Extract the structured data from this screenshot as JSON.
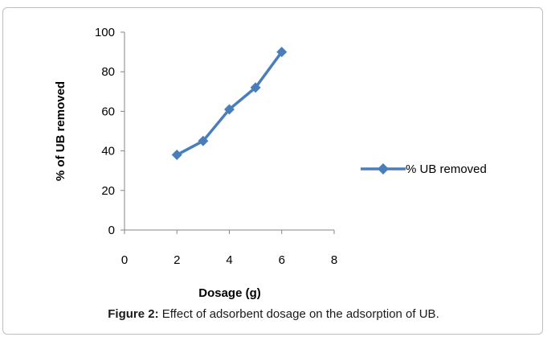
{
  "chart_data": {
    "type": "line",
    "x": [
      2,
      3,
      4,
      5,
      6
    ],
    "series": [
      {
        "name": "% UB removed",
        "values": [
          38,
          45,
          61,
          72,
          90
        ]
      }
    ],
    "xlabel": "Dosage (g)",
    "ylabel": "% of UB removed",
    "xlim": [
      0,
      8
    ],
    "ylim": [
      0,
      100
    ],
    "xticks": [
      0,
      2,
      4,
      6,
      8
    ],
    "yticks": [
      0,
      20,
      40,
      60,
      80,
      100
    ],
    "grid": false,
    "legend_position": "right",
    "marker": "diamond",
    "series_color": "#4a7ebb"
  },
  "caption": {
    "label": "Figure 2:",
    "text": " Effect of adsorbent dosage on the adsorption of UB."
  }
}
